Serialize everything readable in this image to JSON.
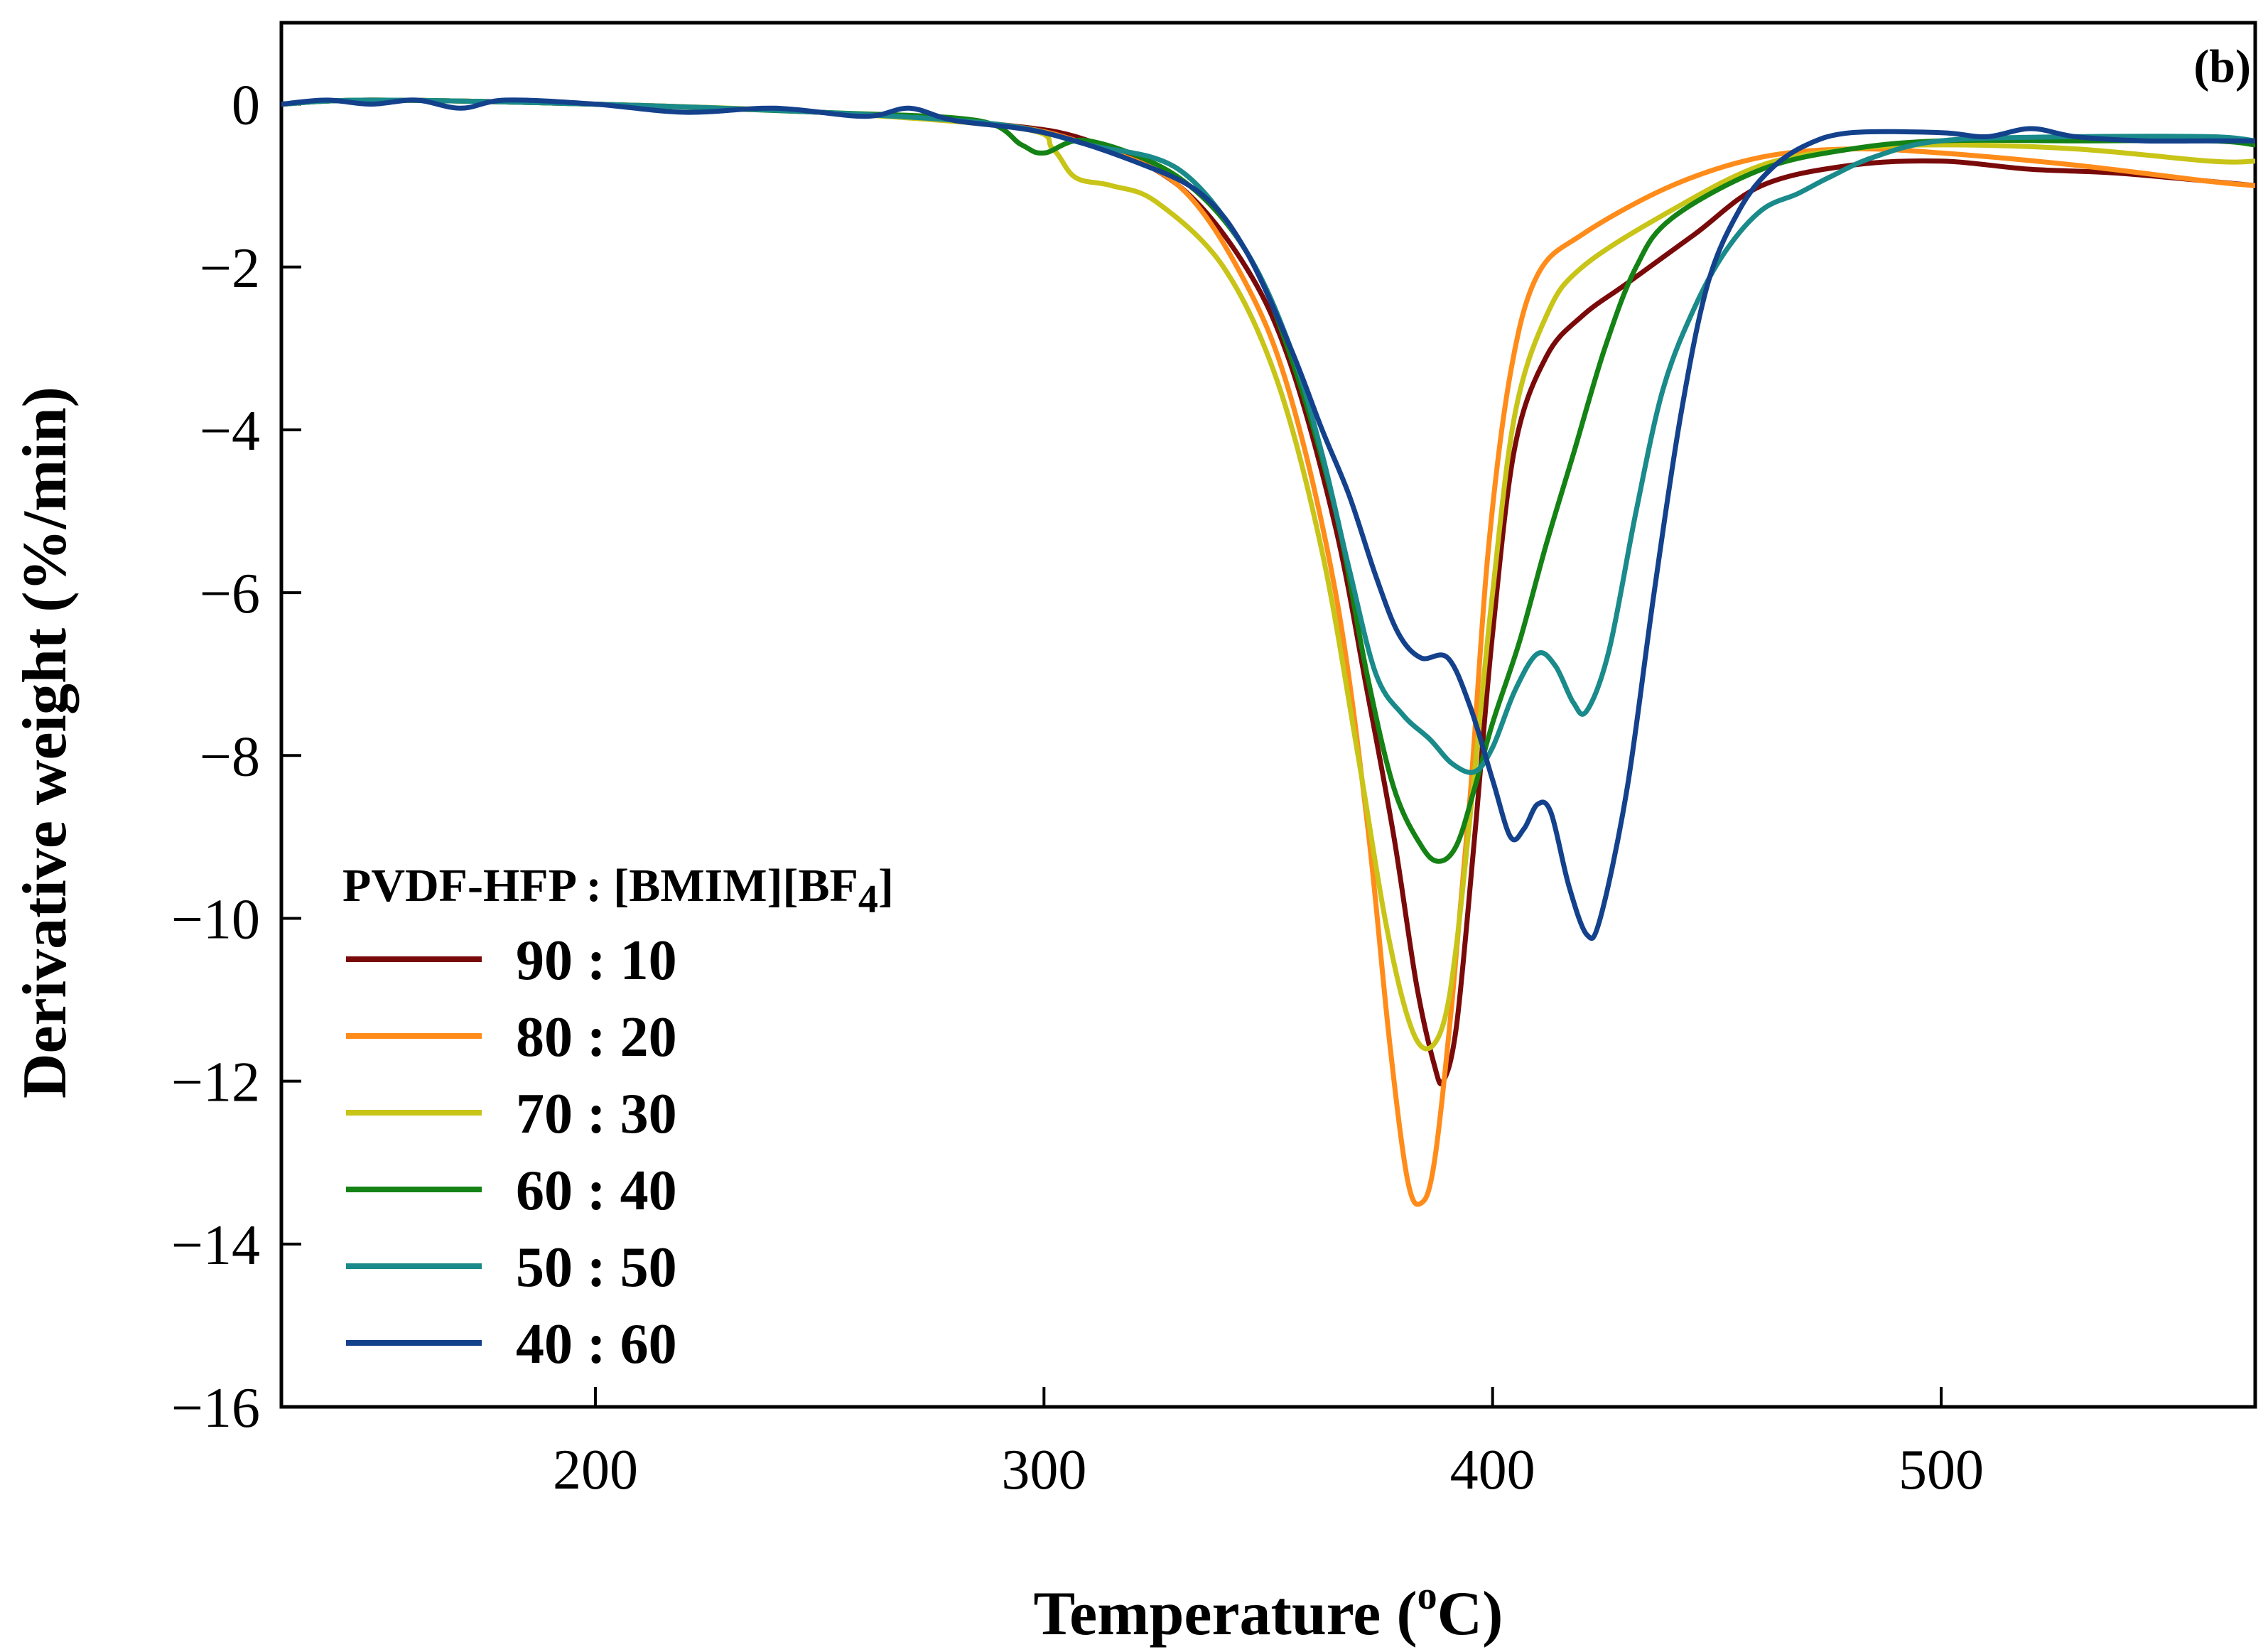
{
  "chart_data": {
    "type": "line",
    "panel_label": "(b)",
    "xlabel": {
      "main": "Temperature (",
      "sup": "o",
      "unit": "C)"
    },
    "ylabel": "Derivative weight (%/min)",
    "xlim": [
      130,
      570
    ],
    "ylim": [
      -16,
      1
    ],
    "x_ticks": [
      200,
      300,
      400,
      500
    ],
    "x_tick_labels": [
      "200",
      "300",
      "400",
      "500"
    ],
    "y_ticks": [
      0,
      -2,
      -4,
      -6,
      -8,
      -10,
      -12,
      -14,
      -16
    ],
    "y_tick_labels": [
      "0",
      "−2",
      "−4",
      "−6",
      "−8",
      "−10",
      "−12",
      "−14",
      "−16"
    ],
    "grid": false,
    "legend": {
      "placement": "bottom-left",
      "title_main": "PVDF-HFP : [BMIM][BF",
      "title_sub": "4",
      "title_end": "]"
    },
    "series": [
      {
        "name": "90 : 10",
        "color": "#7a0a0a",
        "points": [
          [
            130,
            0
          ],
          [
            150,
            0.05
          ],
          [
            200,
            0
          ],
          [
            250,
            -0.1
          ],
          [
            290,
            -0.25
          ],
          [
            310,
            -0.45
          ],
          [
            330,
            -1.0
          ],
          [
            345,
            -2.0
          ],
          [
            355,
            -3.2
          ],
          [
            365,
            -5.2
          ],
          [
            372,
            -7.2
          ],
          [
            378,
            -9.0
          ],
          [
            383,
            -10.8
          ],
          [
            387,
            -11.8
          ],
          [
            389,
            -12.0
          ],
          [
            392,
            -11.3
          ],
          [
            396,
            -9.0
          ],
          [
            400,
            -6.5
          ],
          [
            405,
            -4.2
          ],
          [
            412,
            -3.1
          ],
          [
            420,
            -2.6
          ],
          [
            430,
            -2.2
          ],
          [
            445,
            -1.6
          ],
          [
            460,
            -1.0
          ],
          [
            480,
            -0.75
          ],
          [
            500,
            -0.7
          ],
          [
            520,
            -0.8
          ],
          [
            540,
            -0.85
          ],
          [
            570,
            -1.0
          ]
        ]
      },
      {
        "name": "80 : 20",
        "color": "#ff8c1a",
        "points": [
          [
            130,
            0
          ],
          [
            150,
            0.05
          ],
          [
            200,
            0
          ],
          [
            250,
            -0.1
          ],
          [
            290,
            -0.25
          ],
          [
            310,
            -0.5
          ],
          [
            330,
            -1.0
          ],
          [
            345,
            -2.2
          ],
          [
            355,
            -3.6
          ],
          [
            365,
            -6.0
          ],
          [
            372,
            -8.8
          ],
          [
            377,
            -11.5
          ],
          [
            381,
            -13.2
          ],
          [
            384,
            -13.5
          ],
          [
            387,
            -13.0
          ],
          [
            391,
            -11.0
          ],
          [
            395,
            -8.5
          ],
          [
            399,
            -5.5
          ],
          [
            404,
            -3.3
          ],
          [
            410,
            -2.1
          ],
          [
            420,
            -1.6
          ],
          [
            440,
            -1.0
          ],
          [
            460,
            -0.65
          ],
          [
            480,
            -0.55
          ],
          [
            500,
            -0.6
          ],
          [
            530,
            -0.75
          ],
          [
            560,
            -0.95
          ],
          [
            570,
            -1.0
          ]
        ]
      },
      {
        "name": "70 : 30",
        "color": "#c8c418",
        "points": [
          [
            130,
            0
          ],
          [
            150,
            0.05
          ],
          [
            200,
            0
          ],
          [
            250,
            -0.1
          ],
          [
            295,
            -0.3
          ],
          [
            302,
            -0.55
          ],
          [
            307,
            -0.9
          ],
          [
            315,
            -1.0
          ],
          [
            325,
            -1.2
          ],
          [
            340,
            -2.0
          ],
          [
            352,
            -3.4
          ],
          [
            362,
            -5.5
          ],
          [
            370,
            -8.0
          ],
          [
            376,
            -10.0
          ],
          [
            381,
            -11.2
          ],
          [
            385,
            -11.6
          ],
          [
            389,
            -11.3
          ],
          [
            392,
            -10.3
          ],
          [
            396,
            -8.2
          ],
          [
            400,
            -6.0
          ],
          [
            405,
            -3.8
          ],
          [
            412,
            -2.6
          ],
          [
            420,
            -2.0
          ],
          [
            440,
            -1.3
          ],
          [
            460,
            -0.75
          ],
          [
            480,
            -0.55
          ],
          [
            500,
            -0.5
          ],
          [
            530,
            -0.55
          ],
          [
            560,
            -0.7
          ],
          [
            570,
            -0.7
          ]
        ]
      },
      {
        "name": "60 : 40",
        "color": "#148214",
        "points": [
          [
            130,
            0
          ],
          [
            150,
            0.05
          ],
          [
            200,
            0
          ],
          [
            250,
            -0.1
          ],
          [
            285,
            -0.2
          ],
          [
            295,
            -0.5
          ],
          [
            300,
            -0.6
          ],
          [
            310,
            -0.45
          ],
          [
            330,
            -0.9
          ],
          [
            345,
            -1.8
          ],
          [
            355,
            -3.1
          ],
          [
            365,
            -5.0
          ],
          [
            372,
            -7.0
          ],
          [
            378,
            -8.4
          ],
          [
            384,
            -9.1
          ],
          [
            388,
            -9.3
          ],
          [
            392,
            -9.1
          ],
          [
            396,
            -8.4
          ],
          [
            400,
            -7.6
          ],
          [
            406,
            -6.6
          ],
          [
            412,
            -5.4
          ],
          [
            418,
            -4.3
          ],
          [
            425,
            -3.0
          ],
          [
            432,
            -2.0
          ],
          [
            440,
            -1.4
          ],
          [
            460,
            -0.8
          ],
          [
            480,
            -0.55
          ],
          [
            500,
            -0.45
          ],
          [
            530,
            -0.45
          ],
          [
            560,
            -0.45
          ],
          [
            570,
            -0.5
          ]
        ]
      },
      {
        "name": "50 : 50",
        "color": "#1a8a8a",
        "points": [
          [
            130,
            0
          ],
          [
            150,
            0.05
          ],
          [
            200,
            0
          ],
          [
            250,
            -0.1
          ],
          [
            290,
            -0.25
          ],
          [
            310,
            -0.5
          ],
          [
            330,
            -0.8
          ],
          [
            345,
            -1.8
          ],
          [
            355,
            -3.0
          ],
          [
            362,
            -4.3
          ],
          [
            368,
            -5.7
          ],
          [
            374,
            -7.0
          ],
          [
            380,
            -7.5
          ],
          [
            386,
            -7.8
          ],
          [
            391,
            -8.1
          ],
          [
            396,
            -8.2
          ],
          [
            400,
            -7.9
          ],
          [
            405,
            -7.2
          ],
          [
            410,
            -6.75
          ],
          [
            414,
            -6.9
          ],
          [
            418,
            -7.35
          ],
          [
            421,
            -7.45
          ],
          [
            426,
            -6.7
          ],
          [
            432,
            -5.0
          ],
          [
            438,
            -3.5
          ],
          [
            445,
            -2.5
          ],
          [
            452,
            -1.8
          ],
          [
            460,
            -1.3
          ],
          [
            468,
            -1.1
          ],
          [
            475,
            -0.9
          ],
          [
            485,
            -0.65
          ],
          [
            500,
            -0.45
          ],
          [
            530,
            -0.4
          ],
          [
            560,
            -0.4
          ],
          [
            570,
            -0.45
          ]
        ]
      },
      {
        "name": "40 : 60",
        "color": "#14418c",
        "points": [
          [
            130,
            0
          ],
          [
            140,
            0.05
          ],
          [
            150,
            0
          ],
          [
            160,
            0.05
          ],
          [
            170,
            -0.05
          ],
          [
            180,
            0.05
          ],
          [
            200,
            0
          ],
          [
            220,
            -0.1
          ],
          [
            240,
            -0.05
          ],
          [
            260,
            -0.15
          ],
          [
            270,
            -0.05
          ],
          [
            280,
            -0.2
          ],
          [
            300,
            -0.35
          ],
          [
            320,
            -0.7
          ],
          [
            335,
            -1.1
          ],
          [
            345,
            -1.8
          ],
          [
            355,
            -3.0
          ],
          [
            362,
            -4.0
          ],
          [
            368,
            -4.8
          ],
          [
            374,
            -5.8
          ],
          [
            379,
            -6.5
          ],
          [
            384,
            -6.8
          ],
          [
            390,
            -6.8
          ],
          [
            395,
            -7.4
          ],
          [
            400,
            -8.3
          ],
          [
            404,
            -9.0
          ],
          [
            407,
            -8.9
          ],
          [
            410,
            -8.6
          ],
          [
            413,
            -8.7
          ],
          [
            417,
            -9.6
          ],
          [
            421,
            -10.2
          ],
          [
            424,
            -10.0
          ],
          [
            430,
            -8.4
          ],
          [
            436,
            -6.0
          ],
          [
            442,
            -3.8
          ],
          [
            448,
            -2.2
          ],
          [
            455,
            -1.3
          ],
          [
            462,
            -0.8
          ],
          [
            470,
            -0.5
          ],
          [
            480,
            -0.35
          ],
          [
            500,
            -0.35
          ],
          [
            510,
            -0.4
          ],
          [
            520,
            -0.3
          ],
          [
            530,
            -0.4
          ],
          [
            545,
            -0.45
          ],
          [
            560,
            -0.45
          ],
          [
            570,
            -0.45
          ]
        ]
      }
    ]
  }
}
